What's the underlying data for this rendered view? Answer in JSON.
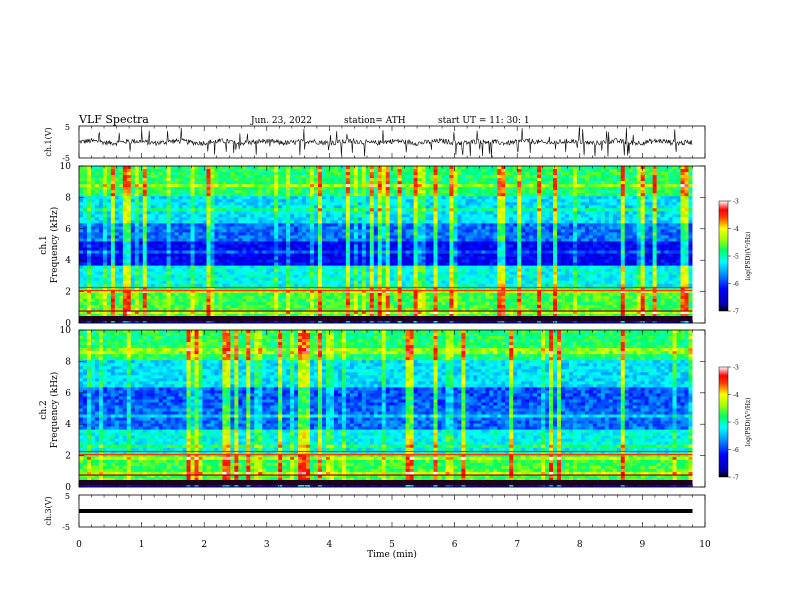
{
  "header": {
    "title": "VLF  Spectra",
    "date": "Jun. 23, 2022",
    "station": "station= ATH",
    "start_time": "start  UT  =    11: 30: 1"
  },
  "chart_data": [
    {
      "type": "line",
      "name": "ch1-waveform",
      "ylabel": "ch.1(V)",
      "ylim": [
        -5,
        5
      ],
      "yticks": [
        "5",
        "-5"
      ],
      "xlim": [
        0,
        10
      ],
      "baseline": 0
    },
    {
      "type": "heatmap",
      "name": "ch1-spectrogram",
      "ylabel_line1": "ch.1",
      "ylabel_line2": "Frequency  (kHz)",
      "ylim": [
        0,
        10
      ],
      "yticks": [
        "0",
        "2",
        "4",
        "6",
        "8",
        "10"
      ],
      "xlim": [
        0,
        9.8
      ],
      "colorbar": {
        "label": "log(PSD)(V²/Hz)",
        "range": [
          -7,
          -3
        ],
        "ticks": [
          "-3",
          "-4",
          "-5",
          "-6",
          "-7"
        ]
      }
    },
    {
      "type": "heatmap",
      "name": "ch2-spectrogram",
      "ylabel_line1": "ch.2",
      "ylabel_line2": "Frequency  (kHz)",
      "ylim": [
        0,
        10
      ],
      "yticks": [
        "0",
        "2",
        "4",
        "6",
        "8",
        "10"
      ],
      "xlim": [
        0,
        9.8
      ],
      "colorbar": {
        "label": "log(PSD)(V²/Hz)",
        "range": [
          -7,
          -3
        ],
        "ticks": [
          "-3",
          "-4",
          "-5",
          "-6",
          "-7"
        ]
      }
    },
    {
      "type": "line",
      "name": "ch3-waveform",
      "ylabel": "ch.3(V)",
      "ylim": [
        -5,
        5
      ],
      "yticks": [
        "5",
        "-5"
      ],
      "xlim": [
        0,
        10
      ],
      "baseline": 0
    }
  ],
  "xaxis": {
    "label": "Time  (min)",
    "ticks": [
      "0",
      "1",
      "2",
      "3",
      "4",
      "5",
      "6",
      "7",
      "8",
      "9",
      "10"
    ]
  },
  "colors": {
    "axis": "#000000",
    "background": "#ffffff"
  }
}
